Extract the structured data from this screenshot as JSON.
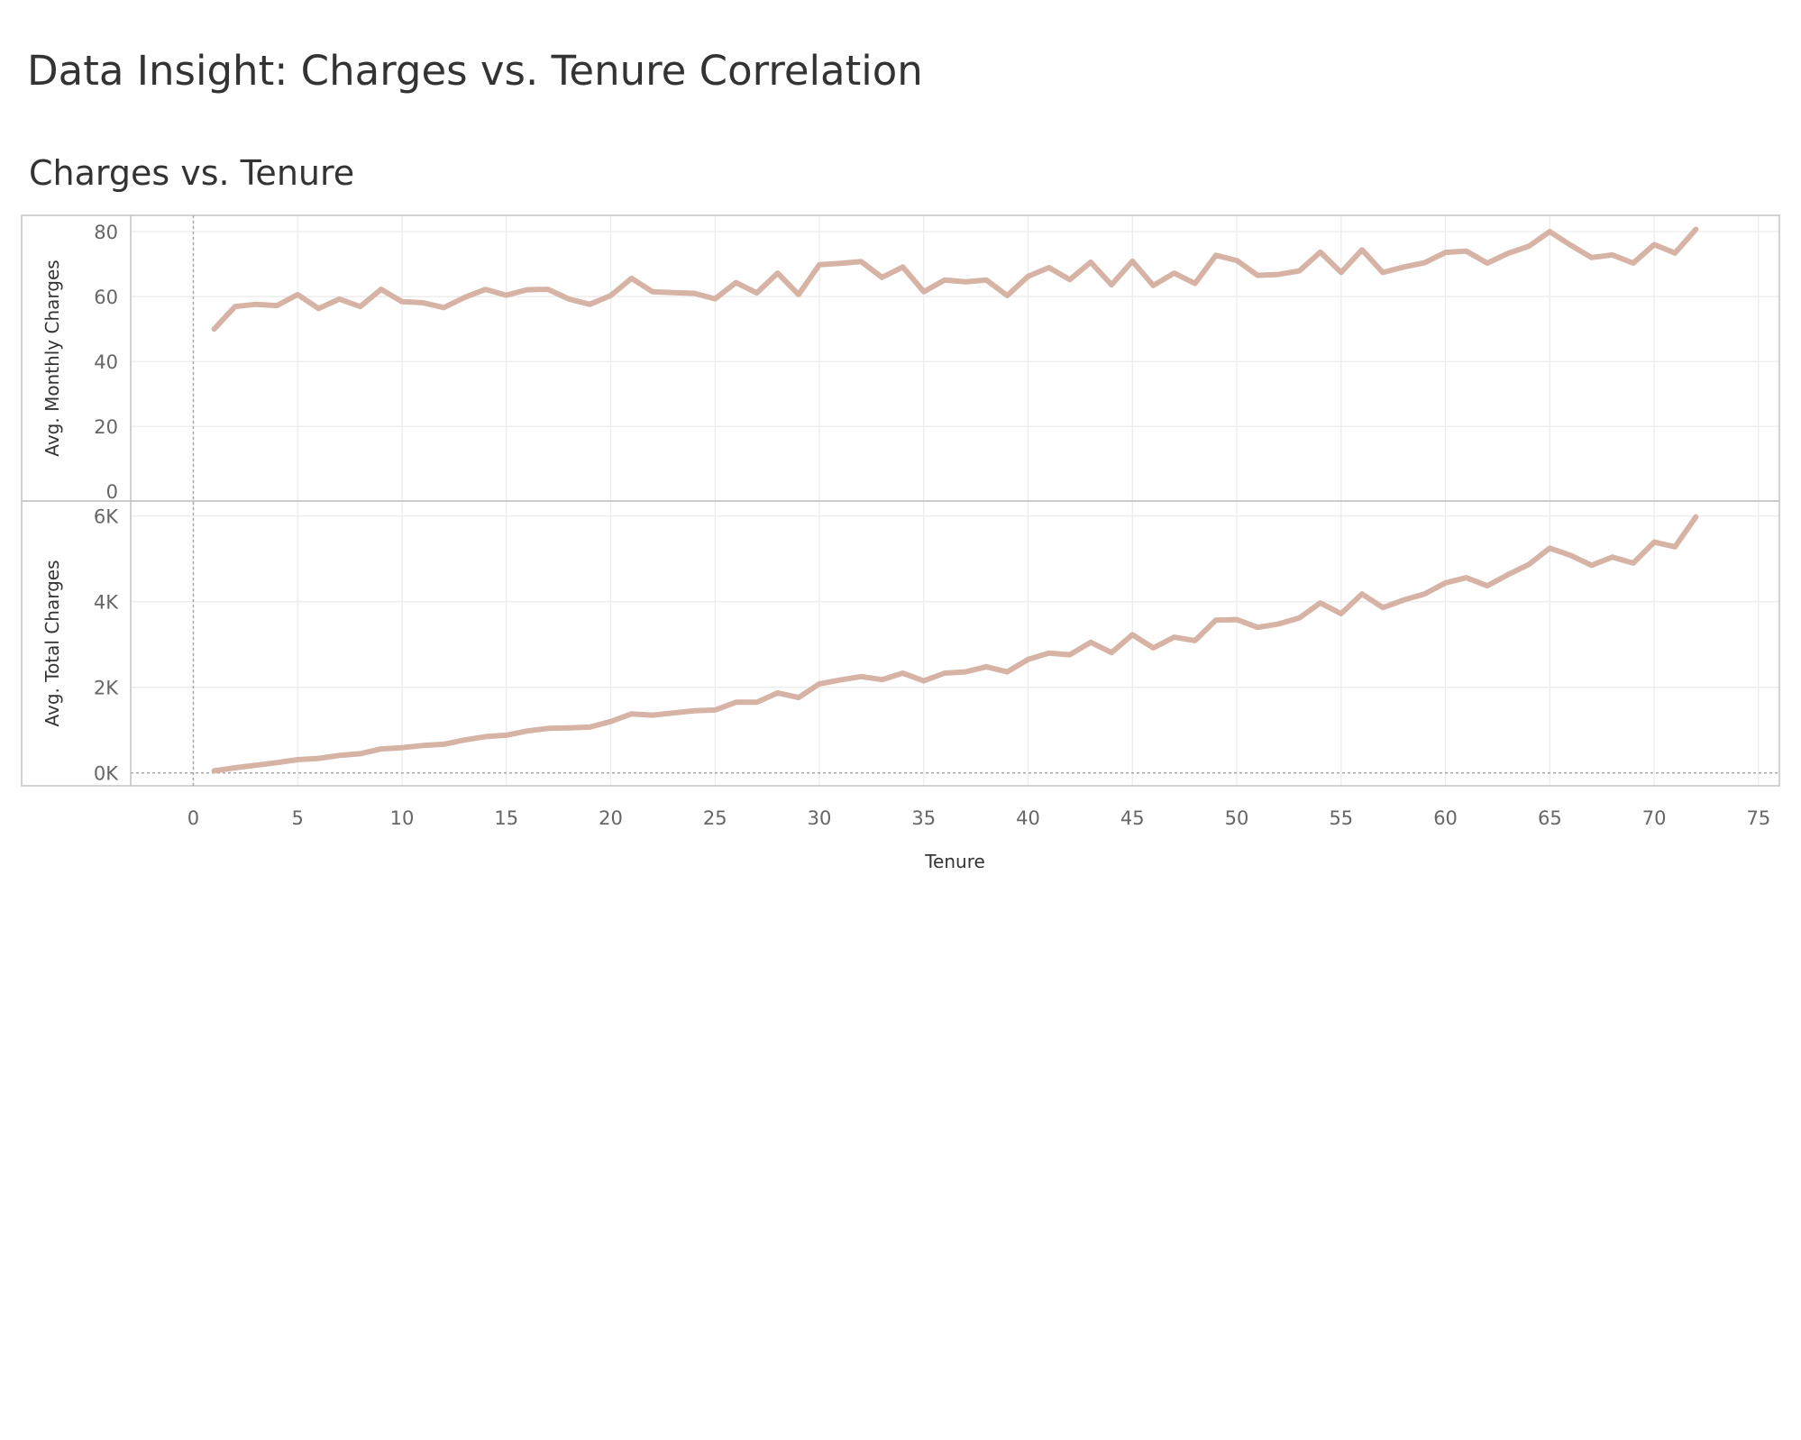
{
  "dashboard": {
    "title": "Data Insight: Charges vs. Tenure Correlation"
  },
  "sheet": {
    "title": "Charges vs. Tenure"
  },
  "chart_data": {
    "type": "line",
    "xlabel": "Tenure",
    "xlim": [
      -3,
      76
    ],
    "xticks": [
      0,
      5,
      10,
      15,
      20,
      25,
      30,
      35,
      40,
      45,
      50,
      55,
      60,
      65,
      70,
      75
    ],
    "x": [
      1,
      2,
      3,
      4,
      5,
      6,
      7,
      8,
      9,
      10,
      11,
      12,
      13,
      14,
      15,
      16,
      17,
      18,
      19,
      20,
      21,
      22,
      23,
      24,
      25,
      26,
      27,
      28,
      29,
      30,
      31,
      32,
      33,
      34,
      35,
      36,
      37,
      38,
      39,
      40,
      41,
      42,
      43,
      44,
      45,
      46,
      47,
      48,
      49,
      50,
      51,
      52,
      53,
      54,
      55,
      56,
      57,
      58,
      59,
      60,
      61,
      62,
      63,
      64,
      65,
      66,
      67,
      68,
      69,
      70,
      71,
      72
    ],
    "panels": [
      {
        "ylabel": "Avg. Monthly Charges",
        "ylim": [
          -3,
          85
        ],
        "yticks": [
          0,
          20,
          40,
          60,
          80
        ],
        "ytick_labels": [
          "0",
          "20",
          "40",
          "60",
          "80"
        ],
        "series": [
          {
            "values": [
              50.0,
              56.9,
              57.6,
              57.2,
              60.6,
              56.3,
              59.2,
              56.9,
              62.2,
              58.4,
              58.1,
              56.6,
              59.7,
              62.2,
              60.4,
              62.1,
              62.2,
              59.2,
              57.6,
              60.3,
              65.6,
              61.5,
              61.2,
              61.0,
              59.3,
              64.3,
              61.1,
              67.2,
              60.6,
              69.8,
              70.2,
              70.8,
              65.9,
              69.1,
              61.5,
              65.1,
              64.5,
              65.1,
              60.3,
              66.2,
              68.9,
              65.2,
              70.6,
              63.6,
              70.9,
              63.4,
              67.2,
              64.0,
              72.7,
              71.1,
              66.5,
              66.8,
              67.9,
              73.7,
              67.4,
              74.4,
              67.4,
              69.1,
              70.4,
              73.6,
              74.0,
              70.3,
              73.3,
              75.5,
              80.0,
              75.8,
              72.0,
              72.8,
              70.3,
              76.0,
              73.4,
              80.7
            ]
          }
        ]
      },
      {
        "ylabel": "Avg. Total Charges",
        "ylim": [
          -300,
          6350
        ],
        "yticks": [
          0,
          2000,
          4000,
          6000
        ],
        "ytick_labels": [
          "0K",
          "2K",
          "4K",
          "6K"
        ],
        "series": [
          {
            "values": [
              50,
              120,
              180,
              240,
              310,
              340,
              410,
              450,
              560,
              590,
              640,
              670,
              770,
              850,
              880,
              980,
              1040,
              1050,
              1070,
              1200,
              1380,
              1350,
              1400,
              1450,
              1470,
              1650,
              1650,
              1870,
              1760,
              2080,
              2170,
              2250,
              2180,
              2330,
              2150,
              2330,
              2360,
              2480,
              2360,
              2650,
              2800,
              2760,
              3050,
              2810,
              3230,
              2920,
              3170,
              3090,
              3570,
              3580,
              3400,
              3480,
              3620,
              3970,
              3720,
              4180,
              3860,
              4040,
              4180,
              4440,
              4560,
              4370,
              4630,
              4870,
              5250,
              5080,
              4850,
              5040,
              4900,
              5390,
              5280,
              5980
            ]
          }
        ]
      }
    ]
  }
}
